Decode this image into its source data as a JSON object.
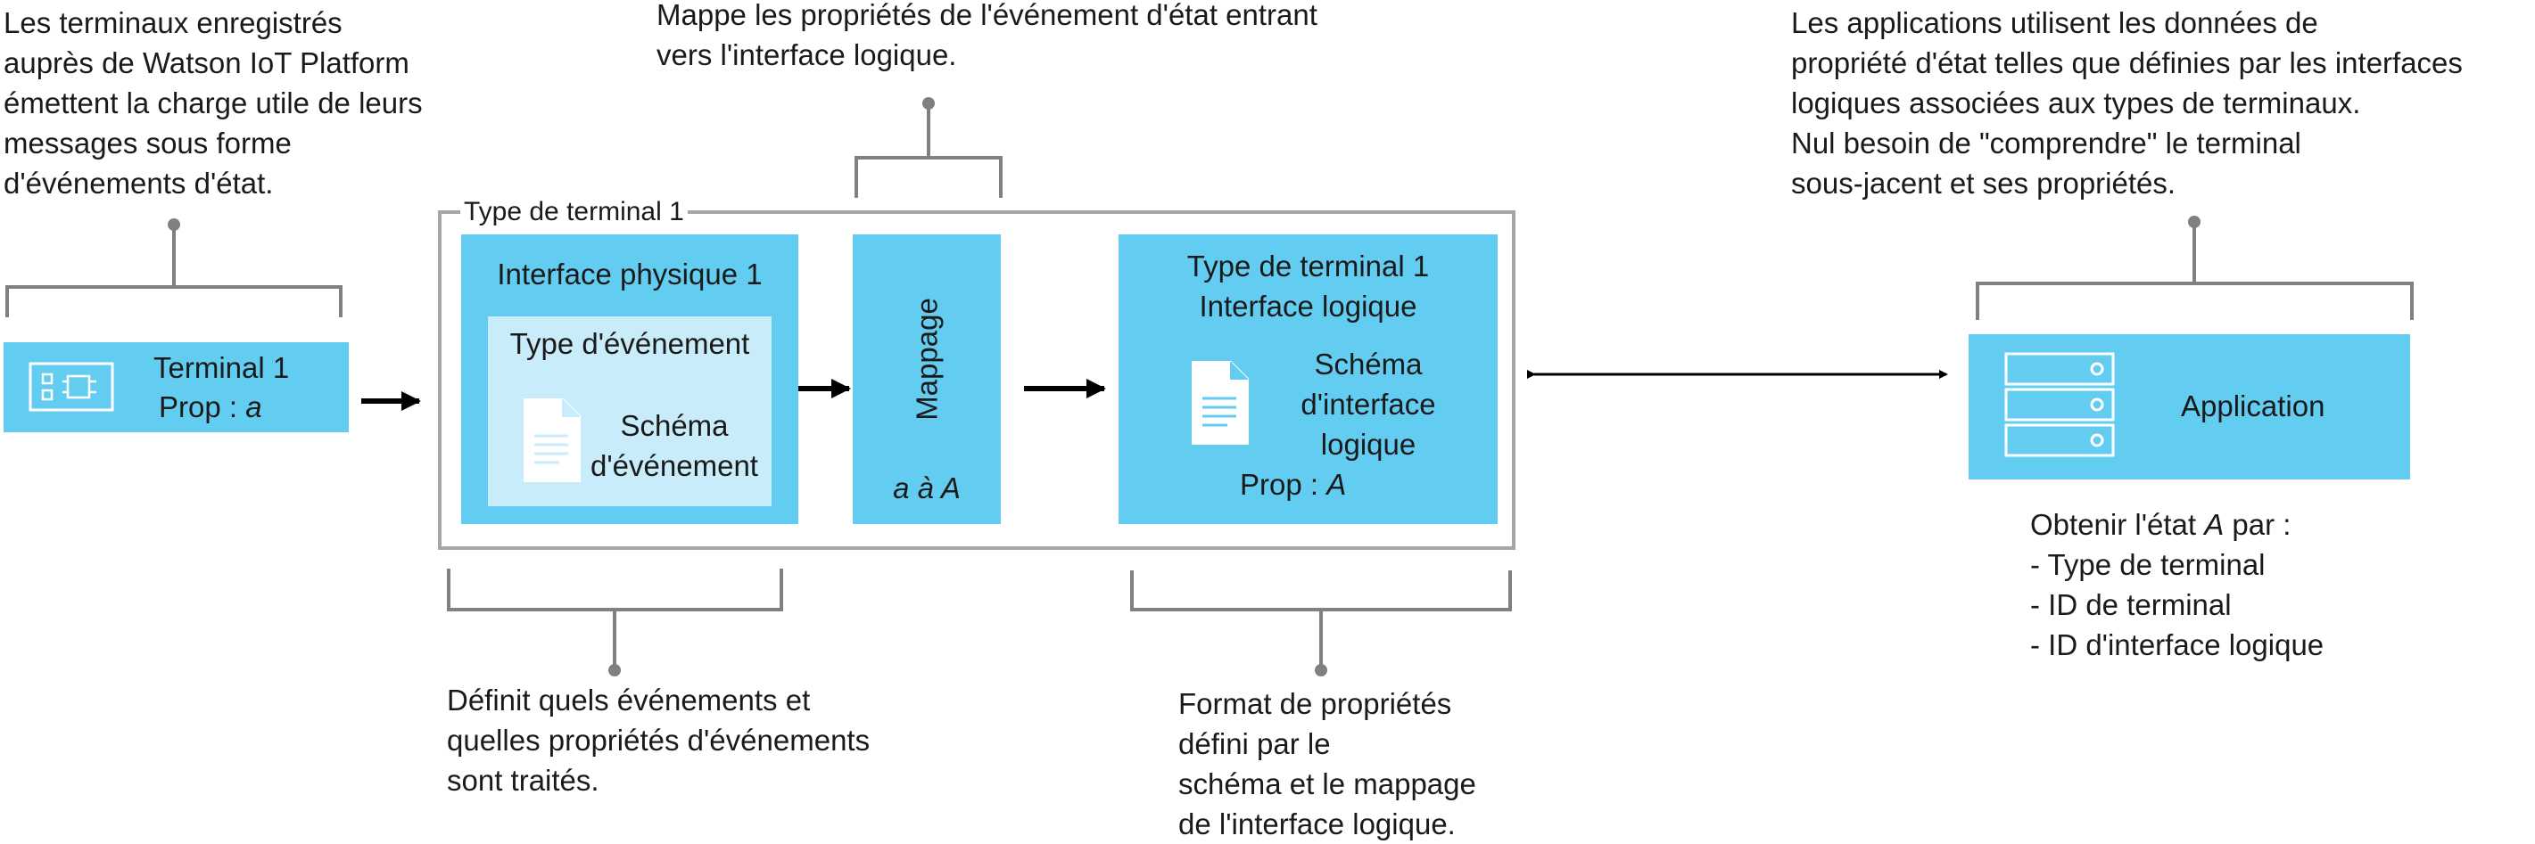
{
  "annotations": {
    "terminal_note": [
      "Les terminaux enregistrés",
      "auprès de Watson IoT Platform",
      "émettent la charge utile de leurs",
      "messages sous forme",
      "d'événements d'état."
    ],
    "mapping_note": [
      "Mappe les propriétés de l'événement d'état entrant",
      "vers l'interface logique."
    ],
    "application_note": [
      "Les applications utilisent les données de",
      "propriété d'état telles que définies par les interfaces",
      "logiques associées aux types de terminaux.",
      "Nul besoin de \"comprendre\" le terminal",
      "sous-jacent et ses propriétés."
    ],
    "event_note": [
      "Définit quels événements et",
      "quelles propriétés d'événements",
      "sont traités."
    ],
    "format_note": [
      "Format de propriétés",
      "défini par le",
      "schéma et le mappage",
      "de l'interface logique."
    ]
  },
  "terminal": {
    "title": "Terminal 1",
    "prop_label": "Prop : ",
    "prop_value": "a"
  },
  "device_type": {
    "label": "Type de terminal 1"
  },
  "physical_interface": {
    "title": "Interface physique 1",
    "event_type": "Type d'événement",
    "schema": [
      "Schéma",
      "d'événement"
    ]
  },
  "mapping": {
    "title": "Mappage",
    "rule": "a à A"
  },
  "logical_interface": {
    "title": [
      "Type de terminal 1",
      "Interface logique"
    ],
    "schema": [
      "Schéma",
      "d'interface",
      "logique"
    ],
    "prop_label": "Prop : ",
    "prop_value": "A"
  },
  "application": {
    "title": "Application",
    "state_label_prefix": "Obtenir l'état ",
    "state_var": "A",
    "state_label_suffix": " par :",
    "items": [
      "- Type de terminal",
      "- ID de terminal",
      "- ID d'interface logique"
    ]
  },
  "colors": {
    "box": "#63cdf1",
    "light": "#c9ecfa",
    "bracket": "#808080",
    "border": "#a6a6a6"
  }
}
